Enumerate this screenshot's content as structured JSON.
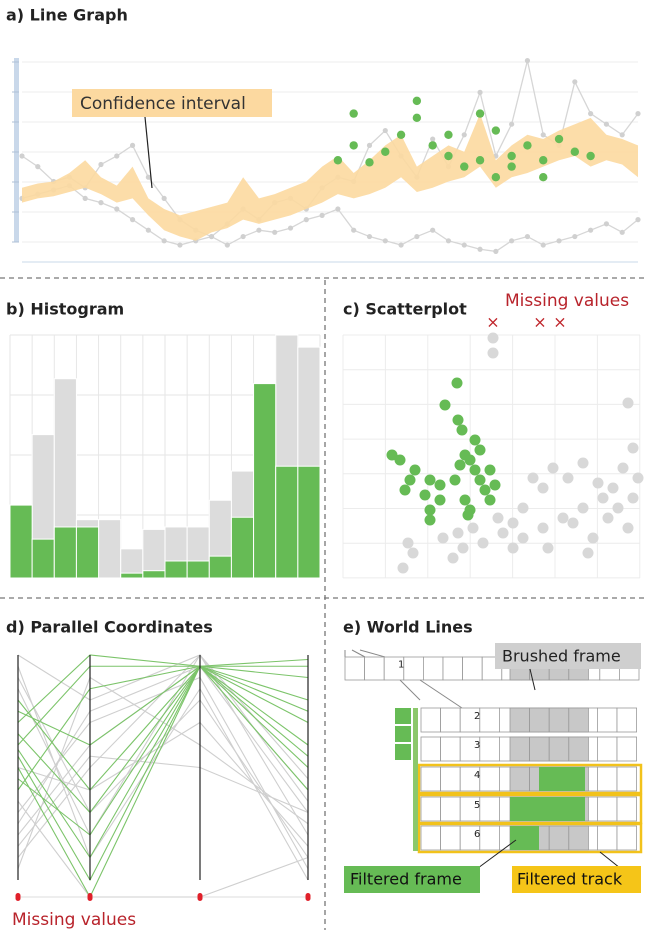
{
  "panels": {
    "line_graph": {
      "title": "a) Line Graph",
      "annotation": "Confidence interval",
      "xlim": [
        0,
        39
      ],
      "ylim": [
        0,
        100
      ],
      "x": [
        0,
        1,
        2,
        3,
        4,
        5,
        6,
        7,
        8,
        9,
        10,
        11,
        12,
        13,
        14,
        15,
        16,
        17,
        18,
        19,
        20,
        21,
        22,
        23,
        24,
        25,
        26,
        27,
        28,
        29,
        30,
        31,
        32,
        33,
        34,
        35,
        36,
        37,
        38,
        39
      ],
      "band_upper": [
        35,
        37,
        38,
        42,
        48,
        40,
        36,
        45,
        30,
        25,
        22,
        24,
        26,
        28,
        40,
        30,
        32,
        35,
        38,
        45,
        50,
        42,
        48,
        55,
        60,
        45,
        50,
        55,
        52,
        70,
        48,
        55,
        60,
        58,
        62,
        65,
        68,
        60,
        58,
        55
      ],
      "band_lower": [
        28,
        30,
        31,
        33,
        35,
        32,
        28,
        30,
        22,
        15,
        12,
        10,
        14,
        16,
        20,
        18,
        20,
        22,
        25,
        28,
        32,
        30,
        32,
        35,
        40,
        33,
        35,
        38,
        40,
        45,
        35,
        40,
        42,
        45,
        48,
        50,
        45,
        48,
        46,
        40
      ],
      "series": [
        {
          "values": [
            50,
            45,
            38,
            40,
            35,
            46,
            50,
            55,
            40,
            30,
            20,
            15,
            12,
            18,
            25,
            20,
            28,
            30,
            25,
            35,
            40,
            38,
            55,
            62,
            50,
            40,
            58,
            45,
            60,
            80,
            50,
            65,
            95,
            60,
            55,
            85,
            70,
            65,
            60,
            70
          ]
        },
        {
          "values": [
            30,
            32,
            34,
            36,
            30,
            28,
            25,
            20,
            15,
            10,
            8,
            10,
            12,
            8,
            12,
            15,
            14,
            16,
            20,
            22,
            25,
            15,
            12,
            10,
            8,
            12,
            15,
            10,
            8,
            6,
            5,
            10,
            12,
            8,
            10,
            12,
            15,
            18,
            14,
            20
          ]
        }
      ],
      "highlight_points": {
        "x": [
          21,
          21,
          23,
          24,
          25,
          26,
          27,
          28,
          29,
          30,
          31,
          32,
          33,
          34,
          35,
          20,
          22,
          30,
          27,
          29,
          31,
          33,
          36,
          25
        ],
        "y": [
          70,
          55,
          52,
          60,
          68,
          55,
          50,
          45,
          48,
          40,
          50,
          55,
          48,
          58,
          52,
          48,
          47,
          62,
          60,
          70,
          45,
          40,
          50,
          76
        ]
      }
    },
    "histogram": {
      "title": "b) Histogram",
      "ylim": [
        0,
        100
      ],
      "values": [
        30,
        59,
        82,
        24,
        24,
        12,
        20,
        21,
        21,
        32,
        44,
        78,
        100,
        95
      ],
      "filtered_values": [
        30,
        16,
        21,
        21,
        0,
        2,
        3,
        7,
        7,
        9,
        25,
        80,
        46,
        46
      ]
    },
    "scatterplot": {
      "title": "c) Scatterplot",
      "annotation": "Missing values",
      "missing_marker": "×",
      "xlim": [
        0,
        297
      ],
      "ylim": [
        0,
        243
      ],
      "missing_x": [
        150,
        197,
        217
      ],
      "points": {
        "x": [
          150,
          150,
          285,
          290,
          280,
          270,
          260,
          240,
          220,
          200,
          180,
          170,
          160,
          140,
          120,
          110,
          100,
          70,
          60,
          65,
          200,
          210,
          190,
          230,
          250,
          265,
          275,
          285,
          245,
          180,
          170,
          155,
          130,
          115,
          225,
          240,
          290,
          295,
          255,
          205
        ],
        "y": [
          240,
          225,
          175,
          130,
          110,
          90,
          80,
          70,
          60,
          50,
          40,
          30,
          45,
          35,
          30,
          20,
          40,
          25,
          10,
          35,
          90,
          110,
          100,
          55,
          40,
          60,
          70,
          50,
          25,
          70,
          55,
          60,
          50,
          45,
          100,
          115,
          80,
          100,
          95,
          30
        ]
      },
      "filtered_points": {
        "x": [
          114,
          102,
          115,
          119,
          49,
          57,
          72,
          62,
          67,
          87,
          97,
          82,
          87,
          87,
          122,
          127,
          132,
          137,
          142,
          147,
          127,
          122,
          132,
          137,
          147,
          152,
          117,
          125,
          112,
          97
        ],
        "y": [
          195,
          173,
          158,
          148,
          123,
          118,
          108,
          88,
          98,
          98,
          93,
          83,
          68,
          58,
          123,
          118,
          108,
          98,
          88,
          78,
          68,
          78,
          138,
          128,
          108,
          93,
          113,
          63,
          98,
          78
        ]
      }
    },
    "parallel_coordinates": {
      "title": "d) Parallel Coordinates",
      "annotation": "Missing values",
      "ylim": [
        0,
        100
      ],
      "lines": [
        [
          100,
          80,
          100,
          20
        ],
        [
          20,
          60,
          95,
          30
        ],
        [
          90,
          30,
          80,
          10
        ],
        [
          10,
          50,
          100,
          45
        ],
        [
          30,
          70,
          90,
          5
        ],
        [
          85,
          20,
          100,
          35
        ],
        [
          5,
          90,
          60,
          25
        ],
        [
          50,
          40,
          70,
          15
        ],
        [
          95,
          10,
          85,
          0
        ],
        [
          25,
          75,
          95,
          40
        ],
        [
          35,
          null,
          null,
          10
        ],
        [
          15,
          55,
          50,
          30
        ]
      ],
      "filtered_lines": [
        [
          70,
          100,
          95,
          98
        ],
        [
          55,
          0,
          95,
          80
        ],
        [
          80,
          40,
          95,
          55
        ],
        [
          60,
          95,
          95,
          70
        ],
        [
          45,
          20,
          95,
          40
        ],
        [
          75,
          60,
          95,
          90
        ],
        [
          50,
          null,
          95,
          60
        ],
        [
          65,
          30,
          95,
          75
        ],
        [
          40,
          85,
          95,
          95
        ],
        [
          58,
          10,
          95,
          50
        ]
      ]
    },
    "world_lines": {
      "title": "e) World Lines",
      "brushed_label": "Brushed frame",
      "filtered_frame_label": "Filtered frame",
      "filtered_track_label": "Filtered track",
      "track_numbers": [
        "1",
        "2",
        "3",
        "4",
        "5",
        "6"
      ]
    }
  }
}
